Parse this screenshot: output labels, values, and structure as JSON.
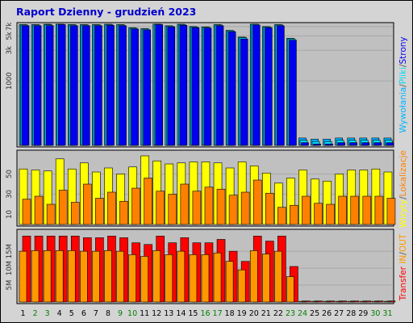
{
  "title": "Raport Dzienny -  grudzień 2023",
  "colors": {
    "frame_bg": "#d4d4d4",
    "panel_bg": "#c0c0c0",
    "title": "#0000cc",
    "grid": "#a8a8a8",
    "line": "#777777",
    "hits": "#00b4ff",
    "files": "#00d8ff",
    "pages": "#0000ee",
    "visits": "#ffff00",
    "sites": "#ff8000",
    "kbytes_total": "#ff0000",
    "kbytes_out": "#ff9900",
    "weekday": "#000000",
    "weekend": "#008000"
  },
  "days": [
    "1",
    "2",
    "3",
    "4",
    "5",
    "6",
    "7",
    "8",
    "9",
    "10",
    "11",
    "12",
    "13",
    "14",
    "15",
    "16",
    "17",
    "18",
    "19",
    "20",
    "21",
    "22",
    "23",
    "24",
    "25",
    "26",
    "27",
    "28",
    "29",
    "30",
    "31"
  ],
  "weekend_days": [
    2,
    3,
    9,
    10,
    16,
    17,
    23,
    24,
    30,
    31
  ],
  "right_labels": {
    "top": [
      {
        "text": "Wywołania",
        "color": "#00b4ff"
      },
      {
        "text": "/",
        "color": "#555555"
      },
      {
        "text": "Pliki",
        "color": "#00d8ff"
      },
      {
        "text": "/",
        "color": "#555555"
      },
      {
        "text": "Strony",
        "color": "#0000ee"
      }
    ],
    "middle": [
      {
        "text": "Wizyty",
        "color": "#ffff00"
      },
      {
        "text": "/",
        "color": "#555555"
      },
      {
        "text": "Lokalizacje",
        "color": "#ff8000"
      }
    ],
    "bottom": [
      {
        "text": "Transfer",
        "color": "#ff0000"
      },
      {
        "text": "IN",
        "color": "#ff9900"
      },
      {
        "text": "/",
        "color": "#555555"
      },
      {
        "text": "OUT",
        "color": "#ff9900"
      }
    ]
  },
  "chart_data": [
    {
      "type": "bar",
      "name": "hits-files-pages",
      "categories": [
        "1",
        "2",
        "3",
        "4",
        "5",
        "6",
        "7",
        "8",
        "9",
        "10",
        "11",
        "12",
        "13",
        "14",
        "15",
        "16",
        "17",
        "18",
        "19",
        "20",
        "21",
        "22",
        "23",
        "24",
        "25",
        "26",
        "27",
        "28",
        "29",
        "30",
        "31"
      ],
      "yscale": "log",
      "yticks": [
        {
          "label": "1000",
          "value": 1000
        },
        {
          "label": "3k",
          "value": 3000
        },
        {
          "label": "5k",
          "value": 5000
        },
        {
          "label": "7k",
          "value": 7000
        }
      ],
      "ylim": [
        100,
        7600
      ],
      "series": [
        {
          "name": "Wywołania",
          "values": [
            7500,
            7500,
            7600,
            7800,
            7500,
            7500,
            7500,
            7600,
            7500,
            6700,
            6500,
            7800,
            7200,
            7600,
            7000,
            6900,
            7500,
            6100,
            4800,
            7700,
            7000,
            7500,
            4600,
            130,
            125,
            125,
            130,
            130,
            130,
            130,
            130
          ]
        },
        {
          "name": "Pliki",
          "values": [
            7400,
            7400,
            7450,
            7700,
            7400,
            7400,
            7400,
            7500,
            7400,
            6600,
            6400,
            7700,
            7100,
            7500,
            6900,
            6800,
            7400,
            6000,
            4700,
            7600,
            6900,
            7400,
            4500,
            120,
            115,
            115,
            120,
            120,
            120,
            120,
            120
          ]
        },
        {
          "name": "Strony",
          "values": [
            7200,
            7200,
            7250,
            7500,
            7200,
            7200,
            7200,
            7300,
            7200,
            6400,
            6200,
            7500,
            6900,
            7300,
            6700,
            6600,
            7200,
            5800,
            4500,
            7400,
            6700,
            7200,
            4300,
            110,
            105,
            105,
            110,
            110,
            110,
            110,
            110
          ]
        }
      ]
    },
    {
      "type": "bar",
      "name": "visits-sites",
      "categories": [
        "1",
        "2",
        "3",
        "4",
        "5",
        "6",
        "7",
        "8",
        "9",
        "10",
        "11",
        "12",
        "13",
        "14",
        "15",
        "16",
        "17",
        "18",
        "19",
        "20",
        "21",
        "22",
        "23",
        "24",
        "25",
        "26",
        "27",
        "28",
        "29",
        "30",
        "31"
      ],
      "yticks": [
        {
          "label": "10",
          "value": 10
        },
        {
          "label": "30",
          "value": 30
        },
        {
          "label": "50",
          "value": 50
        }
      ],
      "ylim": [
        0,
        72
      ],
      "series": [
        {
          "name": "Wizyty",
          "values": [
            55,
            54,
            53,
            65,
            55,
            61,
            52,
            56,
            50,
            57,
            68,
            63,
            60,
            61,
            62,
            62,
            61,
            56,
            62,
            58,
            51,
            41,
            46,
            54,
            45,
            43,
            50,
            54,
            54,
            55,
            52
          ]
        },
        {
          "name": "Lokalizacje",
          "values": [
            25,
            28,
            20,
            34,
            22,
            40,
            26,
            32,
            23,
            36,
            46,
            33,
            30,
            40,
            33,
            37,
            35,
            29,
            32,
            44,
            31,
            17,
            19,
            28,
            21,
            20,
            28,
            28,
            28,
            28,
            26
          ]
        }
      ]
    },
    {
      "type": "bar",
      "name": "transfer",
      "categories": [
        "1",
        "2",
        "3",
        "4",
        "5",
        "6",
        "7",
        "8",
        "9",
        "10",
        "11",
        "12",
        "13",
        "14",
        "15",
        "16",
        "17",
        "18",
        "19",
        "20",
        "21",
        "22",
        "23",
        "24",
        "25",
        "26",
        "27",
        "28",
        "29",
        "30",
        "31"
      ],
      "yticks": [
        {
          "label": "5M",
          "value": 5
        },
        {
          "label": "10M",
          "value": 10
        },
        {
          "label": "15M",
          "value": 15
        }
      ],
      "ylim": [
        0,
        21
      ],
      "series": [
        {
          "name": "Transfer",
          "values": [
            19.5,
            19.5,
            19.5,
            19.5,
            19.5,
            19.0,
            19.0,
            19.5,
            19.0,
            17.5,
            17.0,
            19.5,
            17.5,
            19.0,
            17.5,
            17.5,
            18.5,
            15.0,
            12.0,
            19.5,
            18.0,
            19.5,
            10.5,
            0.3,
            0.3,
            0.3,
            0.3,
            0.3,
            0.3,
            0.3,
            0.3
          ]
        },
        {
          "name": "IN / OUT",
          "values": [
            15.0,
            15.2,
            15.2,
            15.2,
            15.2,
            15.0,
            15.0,
            15.2,
            15.0,
            14.0,
            13.5,
            15.2,
            14.0,
            15.0,
            14.0,
            14.0,
            14.5,
            12.0,
            9.5,
            15.2,
            14.2,
            15.0,
            7.5,
            0.2,
            0.2,
            0.2,
            0.2,
            0.2,
            0.2,
            0.2,
            0.2
          ]
        }
      ]
    }
  ]
}
